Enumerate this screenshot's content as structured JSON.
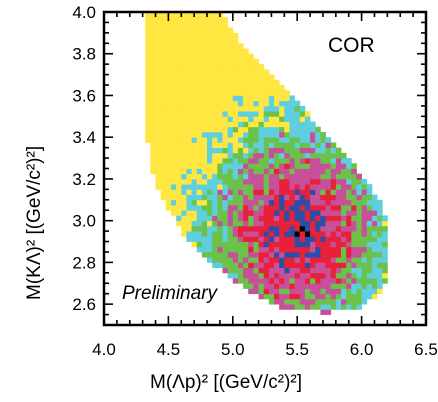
{
  "chart_data": {
    "type": "heatmap",
    "title": "",
    "xlabel": "M(Λp)² [(GeV/c²)²]",
    "ylabel": "M(KΛ)² [(GeV/c²)²]",
    "xlim": [
      4.0,
      6.5
    ],
    "ylim": [
      2.5,
      4.0
    ],
    "xticks": [
      "4.0",
      "4.5",
      "5.0",
      "5.5",
      "6.0",
      "6.5"
    ],
    "yticks": [
      "2.6",
      "2.8",
      "3.0",
      "3.2",
      "3.4",
      "3.6",
      "3.8",
      "4.0"
    ],
    "annotations": [
      "COR",
      "Preliminary"
    ],
    "grid": false,
    "density_peak": {
      "x": 5.5,
      "y": 2.95
    },
    "color_scale": [
      "#ffffff",
      "#ffe640",
      "#5fcfe0",
      "#6bc24a",
      "#c8509a",
      "#e8203a",
      "#2a4fa8",
      "#000000"
    ],
    "dalitz_boundary": [
      {
        "x": 4.32,
        "y": 3.99
      },
      {
        "x": 4.33,
        "y": 3.45
      },
      {
        "x": 4.36,
        "y": 3.25
      },
      {
        "x": 4.44,
        "y": 3.12
      },
      {
        "x": 4.62,
        "y": 2.93
      },
      {
        "x": 4.85,
        "y": 2.79
      },
      {
        "x": 5.1,
        "y": 2.67
      },
      {
        "x": 5.4,
        "y": 2.58
      },
      {
        "x": 5.7,
        "y": 2.56
      },
      {
        "x": 5.95,
        "y": 2.57
      },
      {
        "x": 6.15,
        "y": 2.65
      },
      {
        "x": 6.22,
        "y": 2.78
      },
      {
        "x": 6.22,
        "y": 2.95
      },
      {
        "x": 6.15,
        "y": 3.08
      },
      {
        "x": 6.0,
        "y": 3.22
      },
      {
        "x": 5.75,
        "y": 3.4
      },
      {
        "x": 5.45,
        "y": 3.6
      },
      {
        "x": 5.1,
        "y": 3.82
      },
      {
        "x": 4.92,
        "y": 3.99
      }
    ]
  }
}
